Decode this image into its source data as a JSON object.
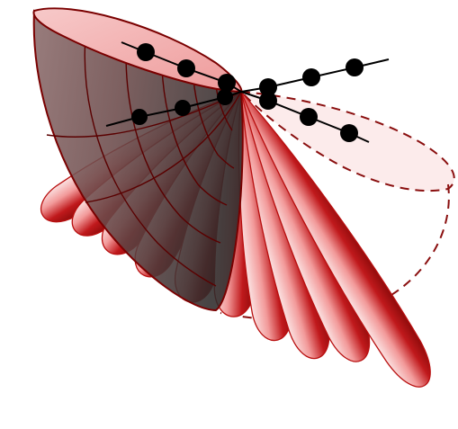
{
  "figure": {
    "description_text": "",
    "palette": {
      "background": "#ffffff",
      "petal_light": "#fbd6d6",
      "petal_mid": "#ec7d7d",
      "petal_dark": "#a40d0d",
      "outline": "#b80f0f",
      "cone_dark": "#3b3b3b",
      "cone_rim": "#7a0000",
      "dashed": "#8a0f0f",
      "atom": "#000000",
      "bond": "#000000"
    },
    "petal_count": 10,
    "atom_count": 12,
    "bond_count": 4
  }
}
